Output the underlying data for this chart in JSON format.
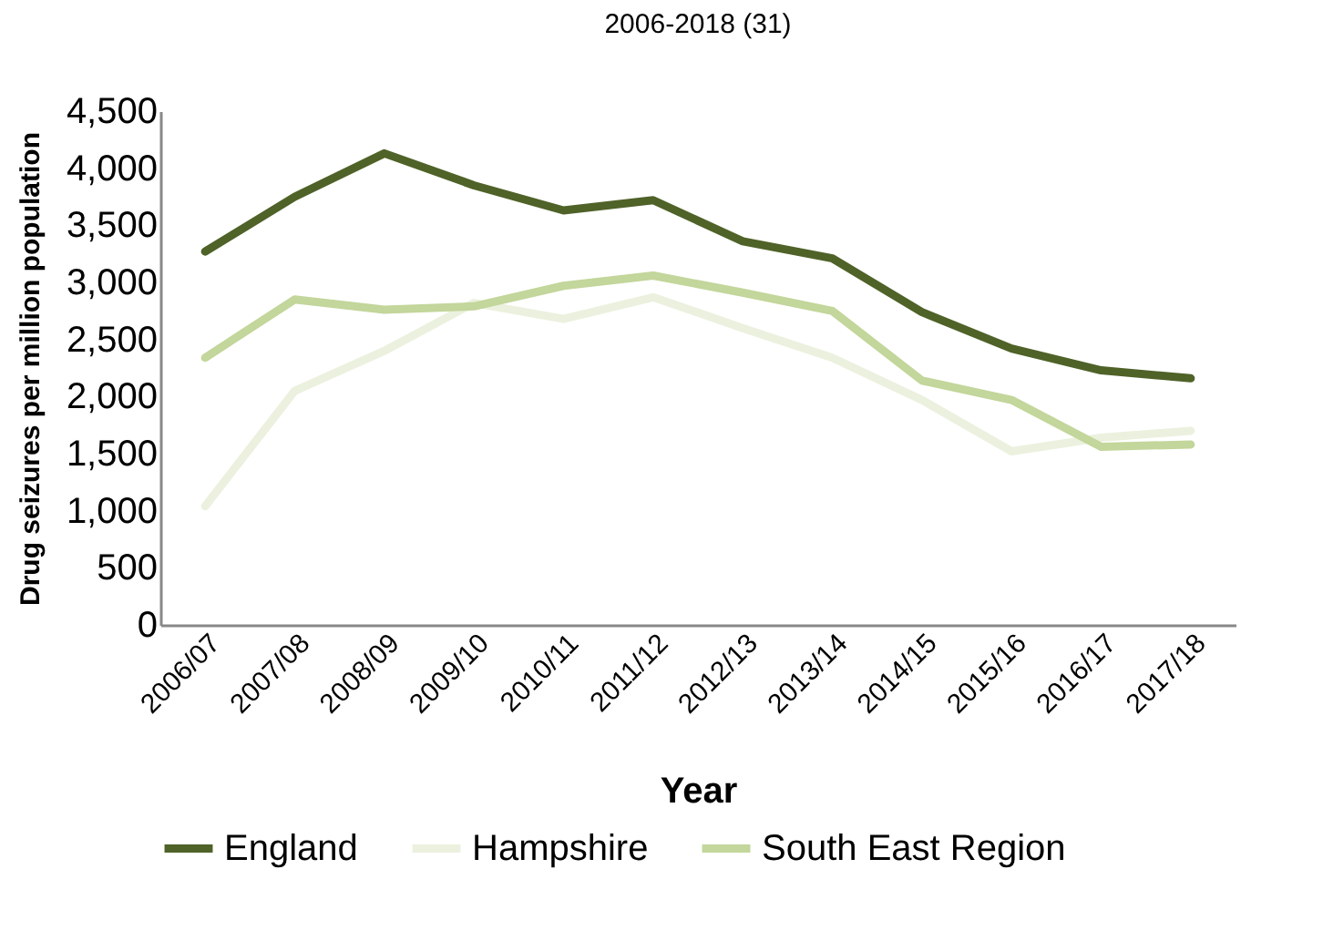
{
  "chart_data": {
    "type": "line",
    "title": "2006-2018 (31)",
    "xlabel": "Year",
    "ylabel": "Drug seizures per million population",
    "categories": [
      "2006/07",
      "2007/08",
      "2008/09",
      "2009/10",
      "2010/11",
      "2011/12",
      "2012/13",
      "2013/14",
      "2014/15",
      "2015/16",
      "2016/17",
      "2017/18"
    ],
    "series": [
      {
        "name": "England",
        "color": "#4f6228",
        "values": [
          3270,
          3750,
          4130,
          3850,
          3630,
          3720,
          3360,
          3210,
          2740,
          2420,
          2230,
          2160
        ]
      },
      {
        "name": "Hampshire",
        "color": "#ebf1de",
        "values": [
          1040,
          2050,
          2400,
          2820,
          2680,
          2870,
          2600,
          2340,
          1970,
          1520,
          1640,
          1700
        ]
      },
      {
        "name": "South East Region",
        "color": "#c3d69b",
        "values": [
          2340,
          2850,
          2760,
          2790,
          2970,
          3060,
          2910,
          2750,
          2140,
          1970,
          1560,
          1580
        ]
      }
    ],
    "ylim": [
      0,
      4500
    ],
    "yticks": [
      0,
      500,
      {
        "value": 1000,
        "label": "1,000"
      },
      {
        "value": 1500,
        "label": "1,500"
      },
      {
        "value": 2000,
        "label": "2,000"
      },
      {
        "value": 2500,
        "label": "2,500"
      },
      {
        "value": 3000,
        "label": "3,000"
      },
      {
        "value": 3500,
        "label": "3,500"
      },
      {
        "value": 4000,
        "label": "4,000"
      },
      {
        "value": 4500,
        "label": "4,500"
      }
    ],
    "grid": false,
    "legend": "bottom",
    "marker": "none",
    "line_style": "solid"
  }
}
